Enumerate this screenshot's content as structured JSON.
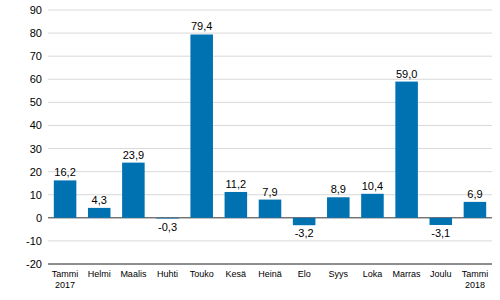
{
  "chart_data": {
    "type": "bar",
    "categories": [
      "Tammi\n2017",
      "Helmi",
      "Maalis",
      "Huhti",
      "Touko",
      "Kesä",
      "Heinä",
      "Elo",
      "Syys",
      "Loka",
      "Marras",
      "Joulu",
      "Tammi\n2018"
    ],
    "values": [
      16.2,
      4.3,
      23.9,
      -0.3,
      79.4,
      11.2,
      7.9,
      -3.2,
      8.9,
      10.4,
      59.0,
      -3.1,
      6.9
    ],
    "value_labels": [
      "16,2",
      "4,3",
      "23,9",
      "-0,3",
      "79,4",
      "11,2",
      "7,9",
      "-3,2",
      "8,9",
      "10,4",
      "59,0",
      "-3,1",
      "6,9"
    ],
    "data_labels": true,
    "color": "#0072b2",
    "ylim": [
      -20,
      90
    ],
    "yticks": [
      -20,
      -10,
      0,
      10,
      20,
      30,
      40,
      50,
      60,
      70,
      80,
      90
    ],
    "grid": true
  }
}
